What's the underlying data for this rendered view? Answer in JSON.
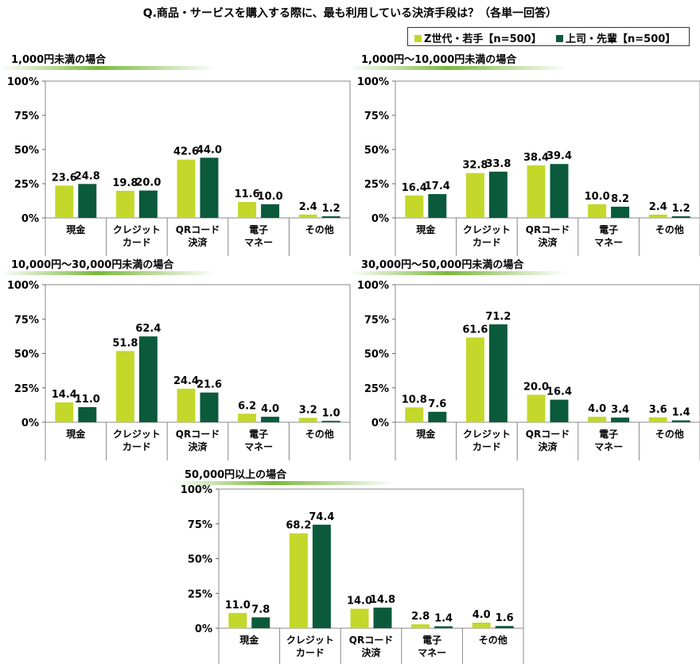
{
  "title": "Q.商品・サービスを購入する際に、最も利用している決済手段は？（各単一回答）",
  "colors": {
    "z_gen": "#c3d82a",
    "boss": "#0b5a3c",
    "title_bar": "#7ab83c"
  },
  "legend": [
    {
      "label": "Z世代・若手【n=500】",
      "color": "#c3d82a"
    },
    {
      "label": "上司・先輩【n=500】",
      "color": "#0b5a3c"
    }
  ],
  "chart_data": [
    {
      "type": "bar",
      "title": "1,000円未満の場合",
      "categories": [
        [
          "現金"
        ],
        [
          "クレジット",
          "カード"
        ],
        [
          "QRコード",
          "決済"
        ],
        [
          "電子",
          "マネー"
        ],
        [
          "その他"
        ]
      ],
      "y_ticks": [
        "100%",
        "75%",
        "50%",
        "25%",
        "0%"
      ],
      "ylim": [
        0,
        100
      ],
      "series": [
        {
          "name": "Z世代・若手【n=500】",
          "values": [
            23.6,
            19.8,
            42.6,
            11.6,
            2.4
          ]
        },
        {
          "name": "上司・先輩【n=500】",
          "values": [
            24.8,
            20.0,
            44.0,
            10.0,
            1.2
          ]
        }
      ]
    },
    {
      "type": "bar",
      "title": "1,000円～10,000円未満の場合",
      "categories": [
        [
          "現金"
        ],
        [
          "クレジット",
          "カード"
        ],
        [
          "QRコード",
          "決済"
        ],
        [
          "電子",
          "マネー"
        ],
        [
          "その他"
        ]
      ],
      "y_ticks": [
        "100%",
        "75%",
        "50%",
        "25%",
        "0%"
      ],
      "ylim": [
        0,
        100
      ],
      "series": [
        {
          "name": "Z世代・若手【n=500】",
          "values": [
            16.4,
            32.8,
            38.4,
            10.0,
            2.4
          ]
        },
        {
          "name": "上司・先輩【n=500】",
          "values": [
            17.4,
            33.8,
            39.4,
            8.2,
            1.2
          ]
        }
      ]
    },
    {
      "type": "bar",
      "title": "10,000円～30,000円未満の場合",
      "categories": [
        [
          "現金"
        ],
        [
          "クレジット",
          "カード"
        ],
        [
          "QRコード",
          "決済"
        ],
        [
          "電子",
          "マネー"
        ],
        [
          "その他"
        ]
      ],
      "y_ticks": [
        "100%",
        "75%",
        "50%",
        "25%",
        "0%"
      ],
      "ylim": [
        0,
        100
      ],
      "series": [
        {
          "name": "Z世代・若手【n=500】",
          "values": [
            14.4,
            51.8,
            24.4,
            6.2,
            3.2
          ]
        },
        {
          "name": "上司・先輩【n=500】",
          "values": [
            11.0,
            62.4,
            21.6,
            4.0,
            1.0
          ]
        }
      ]
    },
    {
      "type": "bar",
      "title": "30,000円～50,000円未満の場合",
      "categories": [
        [
          "現金"
        ],
        [
          "クレジット",
          "カード"
        ],
        [
          "QRコード",
          "決済"
        ],
        [
          "電子",
          "マネー"
        ],
        [
          "その他"
        ]
      ],
      "y_ticks": [
        "100%",
        "75%",
        "50%",
        "25%",
        "0%"
      ],
      "ylim": [
        0,
        100
      ],
      "series": [
        {
          "name": "Z世代・若手【n=500】",
          "values": [
            10.8,
            61.6,
            20.0,
            4.0,
            3.6
          ]
        },
        {
          "name": "上司・先輩【n=500】",
          "values": [
            7.6,
            71.2,
            16.4,
            3.4,
            1.4
          ]
        }
      ]
    },
    {
      "type": "bar",
      "title": "50,000円以上の場合",
      "categories": [
        [
          "現金"
        ],
        [
          "クレジット",
          "カード"
        ],
        [
          "QRコード",
          "決済"
        ],
        [
          "電子",
          "マネー"
        ],
        [
          "その他"
        ]
      ],
      "y_ticks": [
        "100%",
        "75%",
        "50%",
        "25%",
        "0%"
      ],
      "ylim": [
        0,
        100
      ],
      "series": [
        {
          "name": "Z世代・若手【n=500】",
          "values": [
            11.0,
            68.2,
            14.0,
            2.8,
            4.0
          ]
        },
        {
          "name": "上司・先輩【n=500】",
          "values": [
            7.8,
            74.4,
            14.8,
            1.4,
            1.6
          ]
        }
      ]
    }
  ]
}
